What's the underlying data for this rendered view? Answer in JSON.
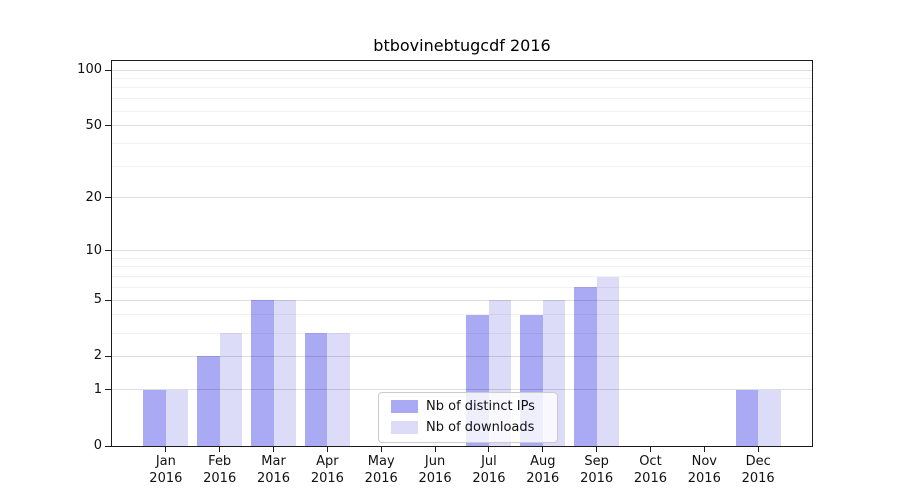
{
  "title": "btbovinebtugcdf 2016",
  "chart_data": {
    "type": "bar",
    "title": "btbovinebtugcdf 2016",
    "scale": "log1p",
    "months": [
      "Jan",
      "Feb",
      "Mar",
      "Apr",
      "May",
      "Jun",
      "Jul",
      "Aug",
      "Sep",
      "Oct",
      "Nov",
      "Dec"
    ],
    "year_label": "2016",
    "series": [
      {
        "name": "Nb of distinct IPs",
        "color": "#a9a9f4",
        "values": [
          1,
          2,
          5,
          3,
          0,
          0,
          4,
          4,
          6,
          0,
          0,
          1
        ]
      },
      {
        "name": "Nb of downloads",
        "color": "#dcdcf9",
        "values": [
          1,
          3,
          5,
          3,
          0,
          0,
          5,
          5,
          7,
          0,
          0,
          1
        ]
      }
    ],
    "yticks": [
      0,
      1,
      2,
      5,
      10,
      20,
      50,
      100
    ],
    "minor_yticks": [
      3,
      4,
      6,
      7,
      8,
      9,
      30,
      40,
      60,
      70,
      80,
      90
    ],
    "ylim": [
      0,
      115
    ],
    "grid": true,
    "legend_position": "lower center"
  }
}
